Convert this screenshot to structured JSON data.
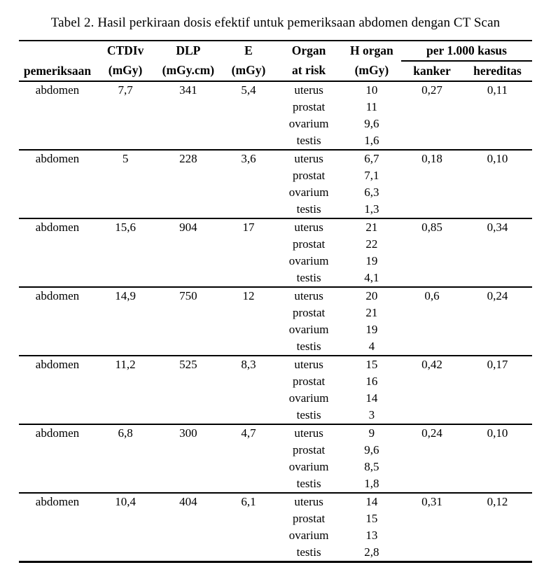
{
  "colors": {
    "text": "#000000",
    "background": "#ffffff",
    "rule": "#000000"
  },
  "caption": "Tabel 2. Hasil perkiraan dosis efektif untuk pemeriksaan abdomen dengan CT Scan",
  "table": {
    "header": {
      "pemeriksaan": "pemeriksaan",
      "ctdiv_line1": "CTDIv",
      "ctdiv_line2": "(mGy)",
      "dlp_line1": "DLP",
      "dlp_line2": "(mGy.cm)",
      "e_line1": "E",
      "e_line2": "(mGy)",
      "organ_line1": "Organ",
      "organ_line2": "at risk",
      "h_organ_line1": "H organ",
      "h_organ_line2": "(mGy)",
      "per_1000_kasus": "per 1.000 kasus",
      "kanker": "kanker",
      "hereditas": "hereditas"
    },
    "groups": [
      {
        "pemeriksaan": "abdomen",
        "ctdiv": "7,7",
        "dlp": "341",
        "e": "5,4",
        "organs": [
          {
            "name": "uterus",
            "h": "10"
          },
          {
            "name": "prostat",
            "h": "11"
          },
          {
            "name": "ovarium",
            "h": "9,6"
          },
          {
            "name": "testis",
            "h": "1,6"
          }
        ],
        "kanker": "0,27",
        "hereditas": "0,11"
      },
      {
        "pemeriksaan": "abdomen",
        "ctdiv": "5",
        "dlp": "228",
        "e": "3,6",
        "organs": [
          {
            "name": "uterus",
            "h": "6,7"
          },
          {
            "name": "prostat",
            "h": "7,1"
          },
          {
            "name": "ovarium",
            "h": "6,3"
          },
          {
            "name": "testis",
            "h": "1,3"
          }
        ],
        "kanker": "0,18",
        "hereditas": "0,10"
      },
      {
        "pemeriksaan": "abdomen",
        "ctdiv": "15,6",
        "dlp": "904",
        "e": "17",
        "organs": [
          {
            "name": "uterus",
            "h": "21"
          },
          {
            "name": "prostat",
            "h": "22"
          },
          {
            "name": "ovarium",
            "h": "19"
          },
          {
            "name": "testis",
            "h": "4,1"
          }
        ],
        "kanker": "0,85",
        "hereditas": "0,34"
      },
      {
        "pemeriksaan": "abdomen",
        "ctdiv": "14,9",
        "dlp": "750",
        "e": "12",
        "organs": [
          {
            "name": "uterus",
            "h": "20"
          },
          {
            "name": "prostat",
            "h": "21"
          },
          {
            "name": "ovarium",
            "h": "19"
          },
          {
            "name": "testis",
            "h": "4"
          }
        ],
        "kanker": "0,6",
        "hereditas": "0,24"
      },
      {
        "pemeriksaan": "abdomen",
        "ctdiv": "11,2",
        "dlp": "525",
        "e": "8,3",
        "organs": [
          {
            "name": "uterus",
            "h": "15"
          },
          {
            "name": "prostat",
            "h": "16"
          },
          {
            "name": "ovarium",
            "h": "14"
          },
          {
            "name": "testis",
            "h": "3"
          }
        ],
        "kanker": "0,42",
        "hereditas": "0,17"
      },
      {
        "pemeriksaan": "abdomen",
        "ctdiv": "6,8",
        "dlp": "300",
        "e": "4,7",
        "organs": [
          {
            "name": "uterus",
            "h": "9"
          },
          {
            "name": "prostat",
            "h": "9,6"
          },
          {
            "name": "ovarium",
            "h": "8,5"
          },
          {
            "name": "testis",
            "h": "1,8"
          }
        ],
        "kanker": "0,24",
        "hereditas": "0,10"
      },
      {
        "pemeriksaan": "abdomen",
        "ctdiv": "10,4",
        "dlp": "404",
        "e": "6,1",
        "organs": [
          {
            "name": "uterus",
            "h": "14"
          },
          {
            "name": "prostat",
            "h": "15"
          },
          {
            "name": "ovarium",
            "h": "13"
          },
          {
            "name": "testis",
            "h": "2,8"
          }
        ],
        "kanker": "0,31",
        "hereditas": "0,12"
      }
    ]
  }
}
